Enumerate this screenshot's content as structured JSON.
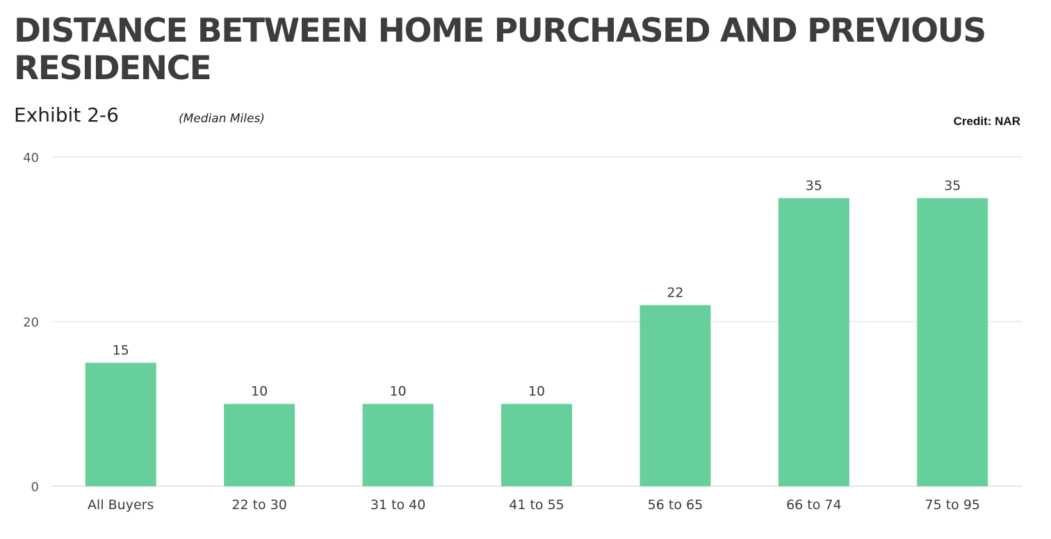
{
  "header": {
    "title": "DISTANCE BETWEEN HOME PURCHASED AND PREVIOUS RESIDENCE",
    "exhibit": "Exhibit 2-6",
    "subtitle": "(Median Miles)",
    "credit": "Credit: NAR"
  },
  "chart_data": {
    "type": "bar",
    "title": "DISTANCE BETWEEN HOME PURCHASED AND PREVIOUS RESIDENCE",
    "subtitle": "(Median Miles)",
    "xlabel": "",
    "ylabel": "",
    "categories": [
      "All Buyers",
      "22 to 30",
      "31 to 40",
      "41 to 55",
      "56 to 65",
      "66 to 74",
      "75 to 95"
    ],
    "values": [
      15,
      10,
      10,
      10,
      22,
      35,
      35
    ],
    "ylim": [
      0,
      40
    ],
    "yticks": [
      0,
      20,
      40
    ],
    "grid": true,
    "legend": "none",
    "bar_color": "#66cf9b",
    "grid_color": "#dddddd"
  }
}
